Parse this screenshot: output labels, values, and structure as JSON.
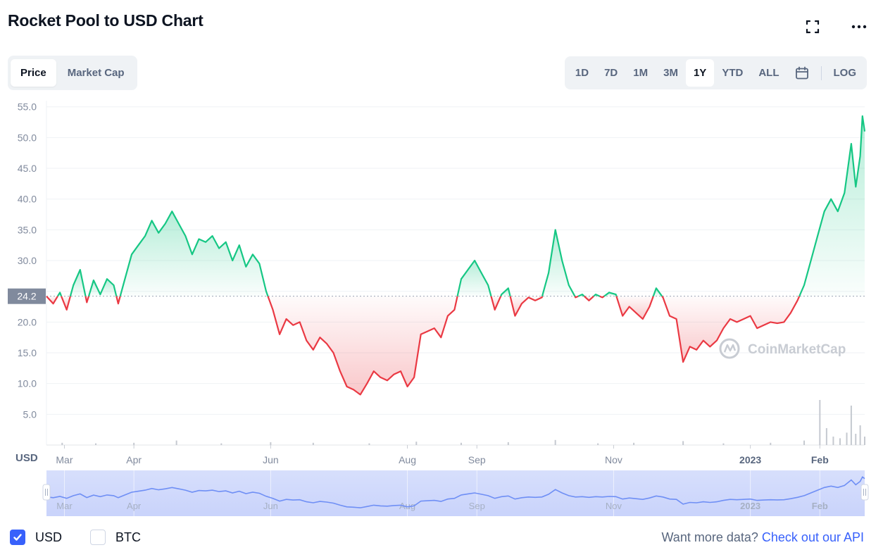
{
  "title": "Rocket Pool to USD Chart",
  "icons": {
    "expand": "fullscreen-icon",
    "more": "more-horizontal-icon",
    "calendar": "calendar-icon",
    "check": "check-icon",
    "handle": "drag-handle-icon"
  },
  "view_toggle": [
    {
      "label": "Price",
      "active": true
    },
    {
      "label": "Market Cap",
      "active": false
    }
  ],
  "ranges": [
    {
      "label": "1D",
      "active": false
    },
    {
      "label": "7D",
      "active": false
    },
    {
      "label": "1M",
      "active": false
    },
    {
      "label": "3M",
      "active": false
    },
    {
      "label": "1Y",
      "active": true
    },
    {
      "label": "YTD",
      "active": false
    },
    {
      "label": "ALL",
      "active": false
    }
  ],
  "log_label": "LOG",
  "currency_label": "USD",
  "watermark": "CoinMarketCap",
  "footer": {
    "options": [
      {
        "label": "USD",
        "checked": true
      },
      {
        "label": "BTC",
        "checked": false
      }
    ],
    "api_prompt": "Want more data?",
    "api_link": "Check out our API"
  },
  "colors": {
    "up": "#16c784",
    "down": "#ea3943",
    "accent": "#3861fb",
    "navigator": "#6f8ff5"
  },
  "chart_data": {
    "type": "line",
    "ylim": [
      0,
      56
    ],
    "yticks": [
      5.0,
      10.0,
      15.0,
      20.0,
      25.0,
      30.0,
      35.0,
      40.0,
      45.0,
      50.0,
      55.0
    ],
    "ytick_labels": [
      "5.0",
      "10.0",
      "15.0",
      "20.0",
      "",
      "30.0",
      "35.0",
      "40.0",
      "45.0",
      "50.0",
      "55.0"
    ],
    "baseline": 24.2,
    "baseline_label": "24.2",
    "xlim": [
      "2022-02-21",
      "2023-02-21"
    ],
    "xticks": [
      {
        "date": "2022-03-01",
        "label": "Mar",
        "bold": false
      },
      {
        "date": "2022-04-01",
        "label": "Apr",
        "bold": false
      },
      {
        "date": "2022-06-01",
        "label": "Jun",
        "bold": false
      },
      {
        "date": "2022-08-01",
        "label": "Aug",
        "bold": false
      },
      {
        "date": "2022-09-01",
        "label": "Sep",
        "bold": false
      },
      {
        "date": "2022-11-01",
        "label": "Nov",
        "bold": false
      },
      {
        "date": "2023-01-01",
        "label": "2023",
        "bold": true
      },
      {
        "date": "2023-02-01",
        "label": "Feb",
        "bold": true
      }
    ],
    "series": [
      {
        "name": "USD",
        "points": [
          [
            "2022-02-21",
            24.2
          ],
          [
            "2022-02-24",
            23.0
          ],
          [
            "2022-02-27",
            24.8
          ],
          [
            "2022-03-02",
            22.0
          ],
          [
            "2022-03-05",
            26.0
          ],
          [
            "2022-03-08",
            28.5
          ],
          [
            "2022-03-11",
            23.2
          ],
          [
            "2022-03-14",
            26.8
          ],
          [
            "2022-03-17",
            24.5
          ],
          [
            "2022-03-20",
            27.0
          ],
          [
            "2022-03-23",
            26.0
          ],
          [
            "2022-03-25",
            23.0
          ],
          [
            "2022-03-28",
            27.0
          ],
          [
            "2022-03-31",
            31.0
          ],
          [
            "2022-04-03",
            32.5
          ],
          [
            "2022-04-06",
            34.0
          ],
          [
            "2022-04-09",
            36.5
          ],
          [
            "2022-04-12",
            34.5
          ],
          [
            "2022-04-15",
            36.0
          ],
          [
            "2022-04-18",
            38.0
          ],
          [
            "2022-04-21",
            36.0
          ],
          [
            "2022-04-24",
            34.0
          ],
          [
            "2022-04-27",
            31.0
          ],
          [
            "2022-04-30",
            33.5
          ],
          [
            "2022-05-03",
            33.0
          ],
          [
            "2022-05-06",
            34.0
          ],
          [
            "2022-05-09",
            32.0
          ],
          [
            "2022-05-12",
            33.0
          ],
          [
            "2022-05-15",
            30.0
          ],
          [
            "2022-05-18",
            32.5
          ],
          [
            "2022-05-21",
            29.0
          ],
          [
            "2022-05-24",
            31.0
          ],
          [
            "2022-05-27",
            29.5
          ],
          [
            "2022-05-30",
            25.0
          ],
          [
            "2022-06-02",
            22.0
          ],
          [
            "2022-06-05",
            18.0
          ],
          [
            "2022-06-08",
            20.5
          ],
          [
            "2022-06-11",
            19.5
          ],
          [
            "2022-06-14",
            20.0
          ],
          [
            "2022-06-17",
            17.0
          ],
          [
            "2022-06-20",
            15.5
          ],
          [
            "2022-06-23",
            17.5
          ],
          [
            "2022-06-26",
            16.5
          ],
          [
            "2022-06-29",
            15.0
          ],
          [
            "2022-07-02",
            12.0
          ],
          [
            "2022-07-05",
            9.5
          ],
          [
            "2022-07-08",
            9.0
          ],
          [
            "2022-07-11",
            8.2
          ],
          [
            "2022-07-14",
            10.0
          ],
          [
            "2022-07-17",
            12.0
          ],
          [
            "2022-07-20",
            11.0
          ],
          [
            "2022-07-23",
            10.5
          ],
          [
            "2022-07-26",
            11.5
          ],
          [
            "2022-07-29",
            12.0
          ],
          [
            "2022-08-01",
            9.5
          ],
          [
            "2022-08-04",
            11.0
          ],
          [
            "2022-08-07",
            18.0
          ],
          [
            "2022-08-10",
            18.5
          ],
          [
            "2022-08-13",
            19.0
          ],
          [
            "2022-08-16",
            17.5
          ],
          [
            "2022-08-19",
            21.0
          ],
          [
            "2022-08-22",
            22.0
          ],
          [
            "2022-08-25",
            27.0
          ],
          [
            "2022-08-28",
            28.5
          ],
          [
            "2022-08-31",
            30.0
          ],
          [
            "2022-09-03",
            28.0
          ],
          [
            "2022-09-06",
            26.0
          ],
          [
            "2022-09-09",
            22.0
          ],
          [
            "2022-09-12",
            24.5
          ],
          [
            "2022-09-15",
            25.5
          ],
          [
            "2022-09-18",
            21.0
          ],
          [
            "2022-09-21",
            23.0
          ],
          [
            "2022-09-24",
            24.0
          ],
          [
            "2022-09-27",
            23.5
          ],
          [
            "2022-09-30",
            24.0
          ],
          [
            "2022-10-03",
            28.0
          ],
          [
            "2022-10-06",
            35.0
          ],
          [
            "2022-10-09",
            30.0
          ],
          [
            "2022-10-12",
            26.0
          ],
          [
            "2022-10-15",
            24.0
          ],
          [
            "2022-10-18",
            24.5
          ],
          [
            "2022-10-21",
            23.5
          ],
          [
            "2022-10-24",
            24.5
          ],
          [
            "2022-10-27",
            24.0
          ],
          [
            "2022-10-30",
            24.8
          ],
          [
            "2022-11-02",
            24.5
          ],
          [
            "2022-11-05",
            21.0
          ],
          [
            "2022-11-08",
            22.5
          ],
          [
            "2022-11-11",
            21.5
          ],
          [
            "2022-11-14",
            20.5
          ],
          [
            "2022-11-17",
            22.5
          ],
          [
            "2022-11-20",
            25.5
          ],
          [
            "2022-11-23",
            24.0
          ],
          [
            "2022-11-26",
            21.0
          ],
          [
            "2022-11-29",
            20.5
          ],
          [
            "2022-12-02",
            13.5
          ],
          [
            "2022-12-05",
            16.0
          ],
          [
            "2022-12-08",
            15.5
          ],
          [
            "2022-12-11",
            17.0
          ],
          [
            "2022-12-14",
            16.0
          ],
          [
            "2022-12-17",
            17.0
          ],
          [
            "2022-12-20",
            19.0
          ],
          [
            "2022-12-23",
            20.5
          ],
          [
            "2022-12-26",
            20.0
          ],
          [
            "2022-12-29",
            20.5
          ],
          [
            "2023-01-01",
            21.0
          ],
          [
            "2023-01-04",
            19.0
          ],
          [
            "2023-01-07",
            19.5
          ],
          [
            "2023-01-10",
            20.0
          ],
          [
            "2023-01-13",
            19.8
          ],
          [
            "2023-01-16",
            20.0
          ],
          [
            "2023-01-19",
            21.5
          ],
          [
            "2023-01-22",
            23.5
          ],
          [
            "2023-01-25",
            26.0
          ],
          [
            "2023-01-28",
            30.0
          ],
          [
            "2023-01-31",
            34.0
          ],
          [
            "2023-02-03",
            38.0
          ],
          [
            "2023-02-06",
            40.0
          ],
          [
            "2023-02-09",
            38.0
          ],
          [
            "2023-02-12",
            41.0
          ],
          [
            "2023-02-15",
            49.0
          ],
          [
            "2023-02-17",
            42.0
          ],
          [
            "2023-02-19",
            47.0
          ],
          [
            "2023-02-20",
            53.5
          ],
          [
            "2023-02-21",
            51.0
          ]
        ]
      }
    ],
    "volume": [
      [
        "2022-02-28",
        0.4
      ],
      [
        "2022-03-15",
        0.3
      ],
      [
        "2022-04-01",
        0.4
      ],
      [
        "2022-04-20",
        0.8
      ],
      [
        "2022-05-10",
        0.3
      ],
      [
        "2022-06-01",
        0.5
      ],
      [
        "2022-06-20",
        0.4
      ],
      [
        "2022-07-15",
        0.3
      ],
      [
        "2022-08-05",
        0.6
      ],
      [
        "2022-08-25",
        0.4
      ],
      [
        "2022-09-15",
        0.5
      ],
      [
        "2022-10-06",
        0.9
      ],
      [
        "2022-10-25",
        0.3
      ],
      [
        "2022-11-10",
        0.4
      ],
      [
        "2022-12-02",
        0.7
      ],
      [
        "2022-12-20",
        0.3
      ],
      [
        "2023-01-10",
        0.4
      ],
      [
        "2023-01-25",
        0.8
      ],
      [
        "2023-02-01",
        8.0
      ],
      [
        "2023-02-04",
        3.0
      ],
      [
        "2023-02-07",
        1.5
      ],
      [
        "2023-02-10",
        1.2
      ],
      [
        "2023-02-13",
        2.2
      ],
      [
        "2023-02-15",
        7.0
      ],
      [
        "2023-02-17",
        2.0
      ],
      [
        "2023-02-19",
        3.5
      ],
      [
        "2023-02-21",
        1.5
      ]
    ],
    "volume_max": 10
  }
}
